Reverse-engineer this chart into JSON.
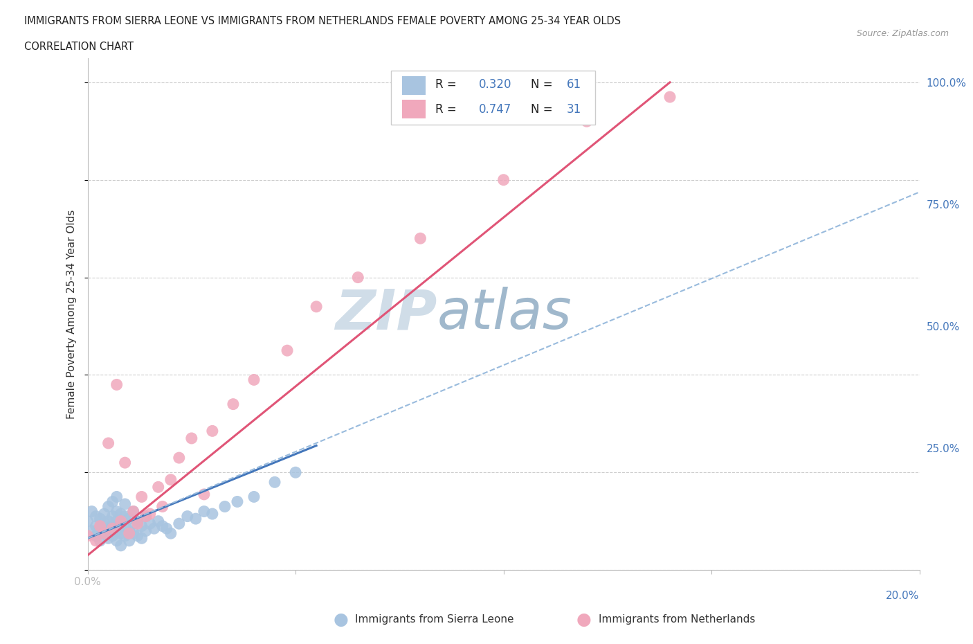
{
  "title_line1": "IMMIGRANTS FROM SIERRA LEONE VS IMMIGRANTS FROM NETHERLANDS FEMALE POVERTY AMONG 25-34 YEAR OLDS",
  "title_line2": "CORRELATION CHART",
  "source_text": "Source: ZipAtlas.com",
  "ylabel": "Female Poverty Among 25-34 Year Olds",
  "xlim": [
    0.0,
    0.2
  ],
  "ylim": [
    0.0,
    1.05
  ],
  "blue_color": "#a8c4e0",
  "pink_color": "#f0a8bc",
  "blue_line_color": "#4477bb",
  "pink_line_color": "#e05577",
  "dashed_line_color": "#99bbdd",
  "watermark_zip": "ZIP",
  "watermark_atlas": "atlas",
  "watermark_color_zip": "#d0dde8",
  "watermark_color_atlas": "#a0b8cc",
  "blue_scatter_x": [
    0.0,
    0.001,
    0.001,
    0.002,
    0.002,
    0.002,
    0.003,
    0.003,
    0.003,
    0.004,
    0.004,
    0.004,
    0.005,
    0.005,
    0.005,
    0.005,
    0.006,
    0.006,
    0.006,
    0.006,
    0.007,
    0.007,
    0.007,
    0.007,
    0.007,
    0.008,
    0.008,
    0.008,
    0.008,
    0.009,
    0.009,
    0.009,
    0.009,
    0.01,
    0.01,
    0.01,
    0.011,
    0.011,
    0.011,
    0.012,
    0.012,
    0.013,
    0.013,
    0.014,
    0.014,
    0.015,
    0.016,
    0.017,
    0.018,
    0.019,
    0.02,
    0.022,
    0.024,
    0.026,
    0.028,
    0.03,
    0.033,
    0.036,
    0.04,
    0.045,
    0.05
  ],
  "blue_scatter_y": [
    0.1,
    0.08,
    0.12,
    0.07,
    0.09,
    0.11,
    0.06,
    0.085,
    0.105,
    0.075,
    0.095,
    0.115,
    0.065,
    0.08,
    0.1,
    0.13,
    0.07,
    0.09,
    0.11,
    0.14,
    0.06,
    0.08,
    0.1,
    0.12,
    0.15,
    0.075,
    0.095,
    0.115,
    0.05,
    0.07,
    0.09,
    0.11,
    0.135,
    0.06,
    0.08,
    0.105,
    0.075,
    0.095,
    0.12,
    0.07,
    0.1,
    0.065,
    0.09,
    0.08,
    0.11,
    0.095,
    0.085,
    0.1,
    0.09,
    0.085,
    0.075,
    0.095,
    0.11,
    0.105,
    0.12,
    0.115,
    0.13,
    0.14,
    0.15,
    0.18,
    0.2
  ],
  "pink_scatter_x": [
    0.0,
    0.002,
    0.003,
    0.004,
    0.005,
    0.006,
    0.007,
    0.008,
    0.009,
    0.01,
    0.011,
    0.012,
    0.013,
    0.014,
    0.015,
    0.017,
    0.018,
    0.02,
    0.022,
    0.025,
    0.028,
    0.03,
    0.035,
    0.04,
    0.048,
    0.055,
    0.065,
    0.08,
    0.1,
    0.12,
    0.14
  ],
  "pink_scatter_y": [
    0.07,
    0.06,
    0.09,
    0.075,
    0.26,
    0.085,
    0.38,
    0.1,
    0.22,
    0.075,
    0.12,
    0.095,
    0.15,
    0.11,
    0.115,
    0.17,
    0.13,
    0.185,
    0.23,
    0.27,
    0.155,
    0.285,
    0.34,
    0.39,
    0.45,
    0.54,
    0.6,
    0.68,
    0.8,
    0.92,
    0.97
  ],
  "blue_trend_x": [
    0.0,
    0.055
  ],
  "blue_trend_y": [
    0.065,
    0.255
  ],
  "dashed_trend_x": [
    0.0,
    0.2
  ],
  "dashed_trend_y": [
    0.065,
    0.775
  ],
  "pink_trend_x": [
    0.0,
    0.14
  ],
  "pink_trend_y": [
    0.03,
    1.0
  ],
  "bottom_legend_blue": "Immigrants from Sierra Leone",
  "bottom_legend_pink": "Immigrants from Netherlands"
}
